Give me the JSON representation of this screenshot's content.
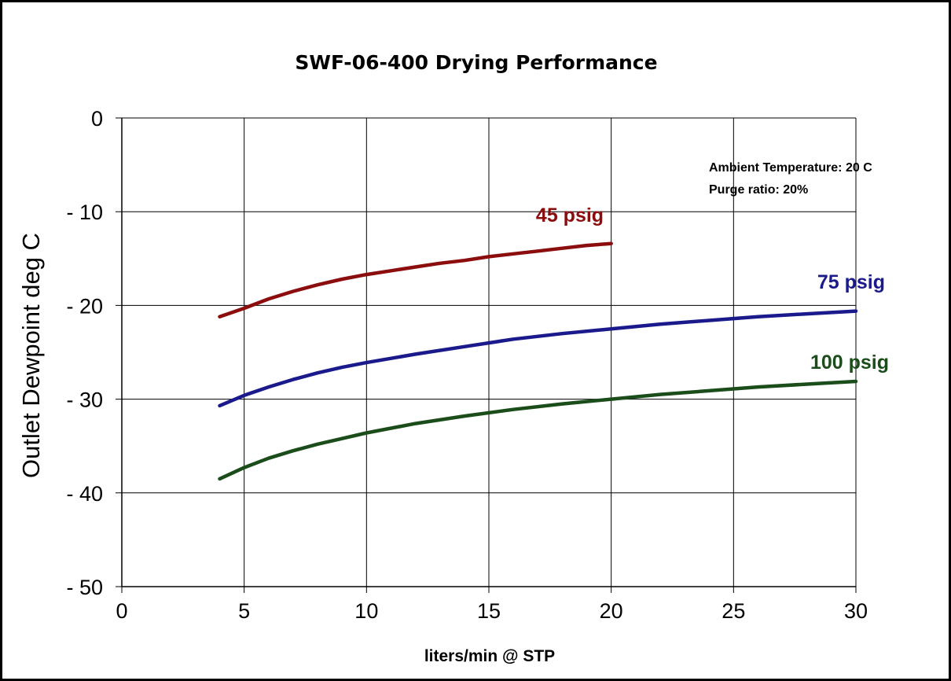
{
  "chart_data": {
    "type": "line",
    "title": "SWF-06-400 Drying Performance",
    "xlabel": "liters/min @ STP",
    "ylabel": "Outlet Dewpoint deg C",
    "xlim": [
      0,
      30
    ],
    "ylim": [
      -50,
      0
    ],
    "x_ticks": [
      "0",
      "5",
      "10",
      "15",
      "20",
      "25",
      "30"
    ],
    "y_ticks": [
      "0",
      "- 10",
      "- 20",
      "- 30",
      "- 40",
      "- 50"
    ],
    "grid": true,
    "annotations": [
      "Ambient Temperature: 20 C",
      "Purge ratio: 20%"
    ],
    "series": [
      {
        "name": "45 psig",
        "color": "#8b0d0d",
        "x": [
          4,
          5,
          6,
          7,
          8,
          9,
          10,
          11,
          12,
          13,
          14,
          15,
          16,
          17,
          18,
          19,
          20
        ],
        "y": [
          -21.2,
          -20.3,
          -19.3,
          -18.5,
          -17.8,
          -17.2,
          -16.7,
          -16.3,
          -15.9,
          -15.5,
          -15.2,
          -14.8,
          -14.5,
          -14.2,
          -13.9,
          -13.6,
          -13.4
        ]
      },
      {
        "name": "75 psig",
        "color": "#1a1a8c",
        "x": [
          4,
          5,
          6,
          7,
          8,
          9,
          10,
          12,
          14,
          16,
          18,
          20,
          22,
          24,
          26,
          28,
          30
        ],
        "y": [
          -30.7,
          -29.6,
          -28.7,
          -27.9,
          -27.2,
          -26.6,
          -26.1,
          -25.2,
          -24.4,
          -23.6,
          -23.0,
          -22.5,
          -22.0,
          -21.6,
          -21.2,
          -20.9,
          -20.6
        ]
      },
      {
        "name": "100 psig",
        "color": "#1b4d1b",
        "x": [
          4,
          5,
          6,
          7,
          8,
          9,
          10,
          12,
          14,
          16,
          18,
          20,
          22,
          24,
          26,
          28,
          30
        ],
        "y": [
          -38.5,
          -37.3,
          -36.3,
          -35.5,
          -34.8,
          -34.2,
          -33.6,
          -32.6,
          -31.8,
          -31.1,
          -30.5,
          -30.0,
          -29.5,
          -29.1,
          -28.7,
          -28.4,
          -28.1
        ]
      }
    ]
  }
}
